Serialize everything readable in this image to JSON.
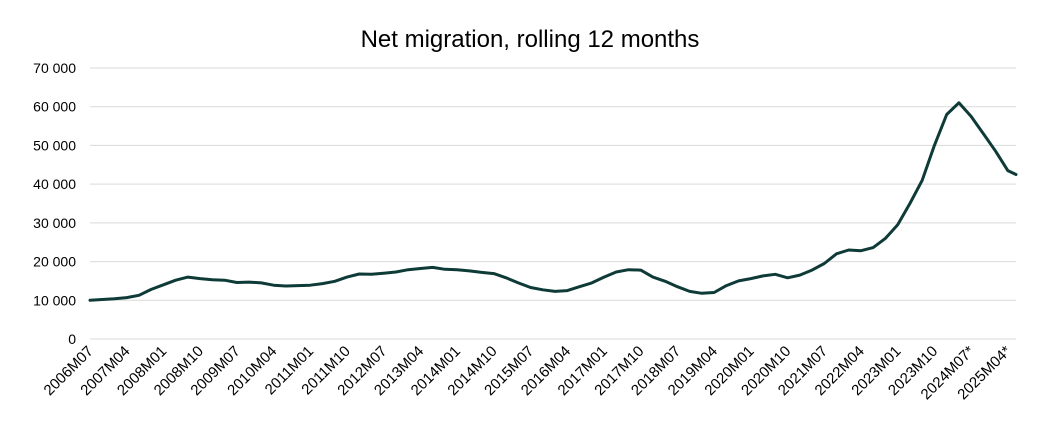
{
  "chart_data": {
    "type": "line",
    "title": "Net migration, rolling 12 months",
    "xlabel": "",
    "ylabel": "",
    "grid": true,
    "legend": "none",
    "ylim": [
      0,
      70000
    ],
    "yticks": [
      "0",
      "10 000",
      "20 000",
      "30 000",
      "40 000",
      "50 000",
      "60 000",
      "70 000"
    ],
    "x_ticks": [
      "2006M07",
      "2007M04",
      "2008M01",
      "2008M10",
      "2009M07",
      "2010M04",
      "2011M01",
      "2011M10",
      "2012M07",
      "2013M04",
      "2014M01",
      "2014M10",
      "2015M07",
      "2016M04",
      "2017M01",
      "2017M10",
      "2018M07",
      "2019M04",
      "2020M01",
      "2020M10",
      "2021M07",
      "2022M04",
      "2023M01",
      "2023M10",
      "2024M07*",
      "2025M04*"
    ],
    "series": [
      {
        "color": "#0e3b37",
        "points": [
          [
            "2006M07",
            10000
          ],
          [
            "2006M10",
            10200
          ],
          [
            "2007M01",
            10400
          ],
          [
            "2007M04",
            10700
          ],
          [
            "2007M07",
            11300
          ],
          [
            "2007M10",
            12800
          ],
          [
            "2008M01",
            14000
          ],
          [
            "2008M04",
            15200
          ],
          [
            "2008M07",
            16000
          ],
          [
            "2008M10",
            15600
          ],
          [
            "2009M01",
            15300
          ],
          [
            "2009M04",
            15200
          ],
          [
            "2009M07",
            14600
          ],
          [
            "2009M10",
            14700
          ],
          [
            "2010M01",
            14500
          ],
          [
            "2010M04",
            13900
          ],
          [
            "2010M07",
            13700
          ],
          [
            "2010M10",
            13800
          ],
          [
            "2011M01",
            13900
          ],
          [
            "2011M04",
            14300
          ],
          [
            "2011M07",
            14900
          ],
          [
            "2011M10",
            16000
          ],
          [
            "2012M01",
            16800
          ],
          [
            "2012M04",
            16700
          ],
          [
            "2012M07",
            17000
          ],
          [
            "2012M10",
            17300
          ],
          [
            "2013M01",
            17900
          ],
          [
            "2013M04",
            18200
          ],
          [
            "2013M07",
            18500
          ],
          [
            "2013M10",
            18000
          ],
          [
            "2014M01",
            17900
          ],
          [
            "2014M04",
            17600
          ],
          [
            "2014M07",
            17200
          ],
          [
            "2014M10",
            16900
          ],
          [
            "2015M01",
            15800
          ],
          [
            "2015M04",
            14500
          ],
          [
            "2015M07",
            13300
          ],
          [
            "2015M10",
            12700
          ],
          [
            "2016M01",
            12300
          ],
          [
            "2016M04",
            12500
          ],
          [
            "2016M07",
            13500
          ],
          [
            "2016M10",
            14500
          ],
          [
            "2017M01",
            16000
          ],
          [
            "2017M04",
            17300
          ],
          [
            "2017M07",
            17900
          ],
          [
            "2017M10",
            17800
          ],
          [
            "2018M01",
            16000
          ],
          [
            "2018M04",
            14900
          ],
          [
            "2018M07",
            13500
          ],
          [
            "2018M10",
            12300
          ],
          [
            "2019M01",
            11800
          ],
          [
            "2019M04",
            12000
          ],
          [
            "2019M07",
            13800
          ],
          [
            "2019M10",
            15000
          ],
          [
            "2020M01",
            15600
          ],
          [
            "2020M04",
            16300
          ],
          [
            "2020M07",
            16700
          ],
          [
            "2020M10",
            15800
          ],
          [
            "2021M01",
            16500
          ],
          [
            "2021M04",
            17800
          ],
          [
            "2021M07",
            19500
          ],
          [
            "2021M10",
            22000
          ],
          [
            "2022M01",
            23000
          ],
          [
            "2022M04",
            22800
          ],
          [
            "2022M07",
            23600
          ],
          [
            "2022M10",
            26000
          ],
          [
            "2023M01",
            29500
          ],
          [
            "2023M04",
            35000
          ],
          [
            "2023M07",
            41000
          ],
          [
            "2023M10",
            50000
          ],
          [
            "2024M01",
            58000
          ],
          [
            "2024M04",
            61000
          ],
          [
            "2024M07",
            57500
          ],
          [
            "2024M10",
            53000
          ],
          [
            "2025M01",
            48500
          ],
          [
            "2025M04",
            43500
          ],
          [
            "2025M06",
            42500
          ]
        ]
      }
    ]
  }
}
